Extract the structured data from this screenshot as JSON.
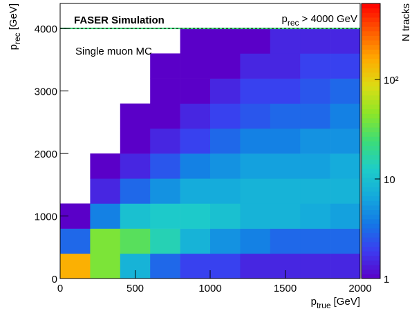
{
  "chart_data": {
    "type": "heatmap2d",
    "title": "FASER Simulation",
    "annotation": "Single muon MC",
    "overflow_label": {
      "main": "p",
      "sub": "rec",
      "rest": "> 4000 GeV"
    },
    "overflow_threshold": 4000,
    "xlabel": {
      "main": "p",
      "sub": "true",
      "unit": "[GeV]"
    },
    "ylabel": {
      "main": "p",
      "sub": "rec",
      "unit": "[GeV]"
    },
    "zlabel": "N tracks",
    "xbins": [
      0,
      200,
      400,
      600,
      800,
      1000,
      1200,
      1400,
      1600,
      1800,
      2000
    ],
    "ybins": [
      0,
      400,
      800,
      1200,
      1600,
      2000,
      2400,
      2800,
      3200,
      3600,
      4000
    ],
    "values": [
      [
        150,
        40,
        8,
        3,
        2,
        2,
        1.5,
        1.5,
        1.5,
        1.5
      ],
      [
        3,
        40,
        30,
        15,
        8,
        5,
        4,
        3,
        3,
        3
      ],
      [
        1,
        4,
        10,
        12,
        12,
        10,
        8,
        8,
        7,
        6
      ],
      [
        null,
        1.5,
        3,
        5,
        7,
        7,
        8,
        8,
        8,
        8
      ],
      [
        null,
        1,
        1.5,
        2.5,
        4,
        5,
        6,
        6,
        6,
        7
      ],
      [
        null,
        null,
        1,
        1.5,
        2,
        3,
        4,
        4,
        5,
        5
      ],
      [
        null,
        null,
        1,
        1,
        1.5,
        2,
        2.5,
        3,
        3,
        4
      ],
      [
        null,
        null,
        null,
        1,
        1,
        1.5,
        2,
        2,
        2.5,
        3
      ],
      [
        null,
        null,
        null,
        1,
        1,
        1,
        1.5,
        1.5,
        2,
        2
      ],
      [
        null,
        null,
        null,
        null,
        1,
        1,
        1,
        1.5,
        1.5,
        1.5
      ]
    ],
    "xlim": [
      0,
      2000
    ],
    "ylim": [
      0,
      4400
    ],
    "xticks": [
      0,
      500,
      1000,
      1500,
      2000
    ],
    "yticks": [
      0,
      1000,
      2000,
      3000,
      4000
    ],
    "zlim": [
      1,
      580
    ],
    "zscale": "log",
    "zticks": [
      1,
      10,
      {
        "value": 100,
        "label": "10²"
      }
    ],
    "palette": [
      "#5a00c8",
      "#3c3cf0",
      "#1478e6",
      "#14aadc",
      "#1ecdc8",
      "#3cdc78",
      "#8ce628",
      "#dcdc14",
      "#ffaa00",
      "#ff5a00",
      "#ff0000"
    ]
  }
}
